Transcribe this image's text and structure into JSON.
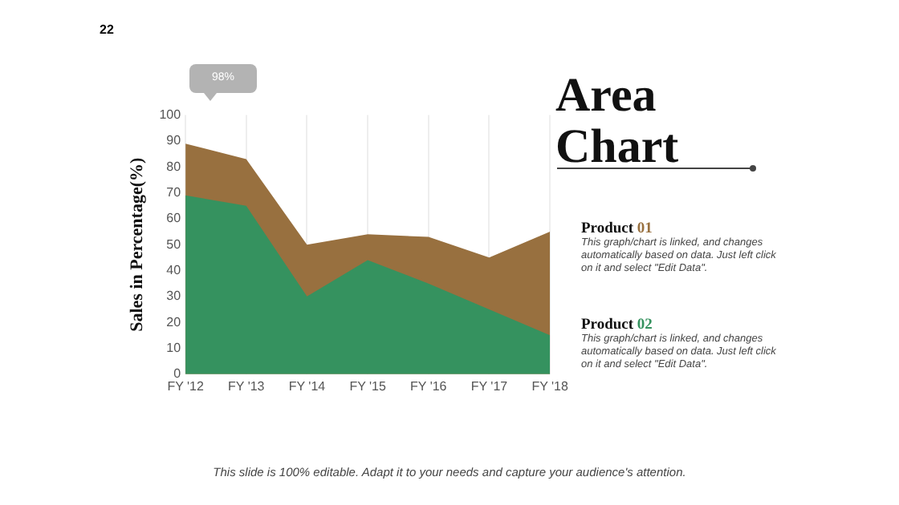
{
  "chart_data": {
    "type": "area",
    "title": "Area Chart",
    "ylabel": "Sales in Percentage(%)",
    "categories": [
      "FY '12",
      "FY '13",
      "FY '14",
      "FY '15",
      "FY '16",
      "FY '17",
      "FY '18"
    ],
    "series": [
      {
        "name": "Product 01",
        "color": "#98703f",
        "values": [
          89,
          83,
          50,
          54,
          53,
          45,
          55
        ]
      },
      {
        "name": "Product 02",
        "color": "#35925f",
        "values": [
          69,
          65,
          30,
          44,
          35,
          25,
          15
        ]
      }
    ],
    "ylim": [
      0,
      100
    ],
    "yticks": [
      0,
      10,
      20,
      30,
      40,
      50,
      60,
      70,
      80,
      90,
      100
    ],
    "grid": "x",
    "legend": "right",
    "annotations": [
      "22",
      "98%",
      "This graph/chart is linked, and changes automatically based on data. Just left click on it and select \"Edit Data\".",
      "This graph/chart is linked, and changes automatically based on data. Just left click on it and select \"Edit Data\".",
      "This slide is 100% editable. Adapt it to your needs and capture your audience's attention."
    ]
  }
}
